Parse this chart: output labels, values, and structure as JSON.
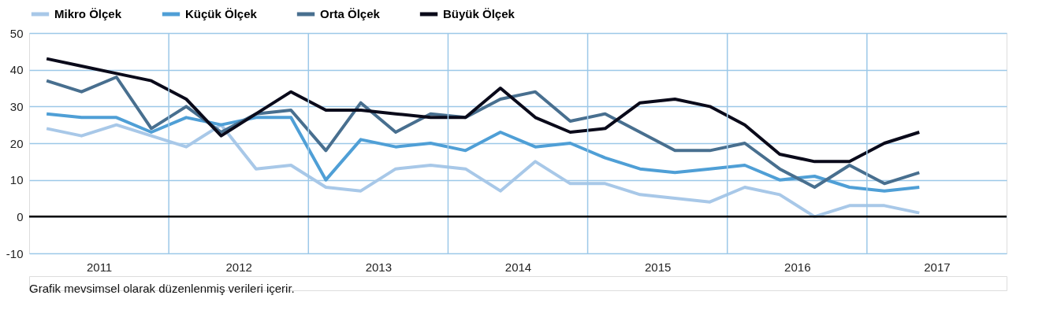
{
  "chart_data": {
    "type": "line",
    "x": [
      2011.125,
      2011.375,
      2011.625,
      2011.875,
      2012.125,
      2012.375,
      2012.625,
      2012.875,
      2013.125,
      2013.375,
      2013.625,
      2013.875,
      2014.125,
      2014.375,
      2014.625,
      2014.875,
      2015.125,
      2015.375,
      2015.625,
      2015.875,
      2016.125,
      2016.375,
      2016.625,
      2016.875,
      2017.125,
      2017.375
    ],
    "series": [
      {
        "name": "Mikro Ölçek",
        "color": "#a8c8e8",
        "values": [
          24,
          22,
          25,
          22,
          19,
          25,
          13,
          14,
          8,
          7,
          13,
          14,
          13,
          7,
          15,
          9,
          9,
          6,
          5,
          4,
          8,
          6,
          0,
          3,
          3,
          1
        ]
      },
      {
        "name": "Küçük Ölçek",
        "color": "#4f9fd6",
        "values": [
          28,
          27,
          27,
          23,
          27,
          25,
          27,
          27,
          10,
          21,
          19,
          20,
          18,
          23,
          19,
          20,
          16,
          13,
          12,
          13,
          14,
          10,
          11,
          8,
          7,
          8
        ]
      },
      {
        "name": "Orta Ölçek",
        "color": "#486f8f",
        "values": [
          37,
          34,
          38,
          24,
          30,
          23,
          28,
          29,
          18,
          31,
          23,
          28,
          27,
          32,
          34,
          26,
          28,
          23,
          18,
          18,
          20,
          13,
          8,
          14,
          9,
          12
        ]
      },
      {
        "name": "Büyük Ölçek",
        "color": "#0a0a1a",
        "values": [
          43,
          41,
          39,
          37,
          32,
          22,
          28,
          34,
          29,
          29,
          28,
          27,
          27,
          35,
          27,
          23,
          24,
          31,
          32,
          30,
          25,
          17,
          15,
          15,
          20,
          23
        ]
      }
    ],
    "xlim": [
      2011,
      2018
    ],
    "xticks": [
      {
        "value": 2011.5,
        "label": "2011"
      },
      {
        "value": 2012,
        "label": null
      },
      {
        "value": 2012.5,
        "label": "2012"
      },
      {
        "value": 2013,
        "label": null
      },
      {
        "value": 2013.5,
        "label": "2013"
      },
      {
        "value": 2014,
        "label": null
      },
      {
        "value": 2014.5,
        "label": "2014"
      },
      {
        "value": 2015,
        "label": null
      },
      {
        "value": 2015.5,
        "label": "2015"
      },
      {
        "value": 2016,
        "label": null
      },
      {
        "value": 2016.5,
        "label": "2016"
      },
      {
        "value": 2017,
        "label": null
      },
      {
        "value": 2017.5,
        "label": "2017"
      }
    ],
    "ylim": [
      -10,
      50
    ],
    "yticks": [
      -10,
      0,
      10,
      20,
      30,
      40,
      50
    ],
    "grid": true,
    "legend": "top",
    "marker": "none",
    "line_style": "solid",
    "ref_lines": [
      {
        "axis": "y",
        "value": 0,
        "label": null,
        "color": "#000000"
      }
    ],
    "annotations": [
      "Grafik mevsimsel olarak düzenlenmiş verileri içerir."
    ]
  }
}
